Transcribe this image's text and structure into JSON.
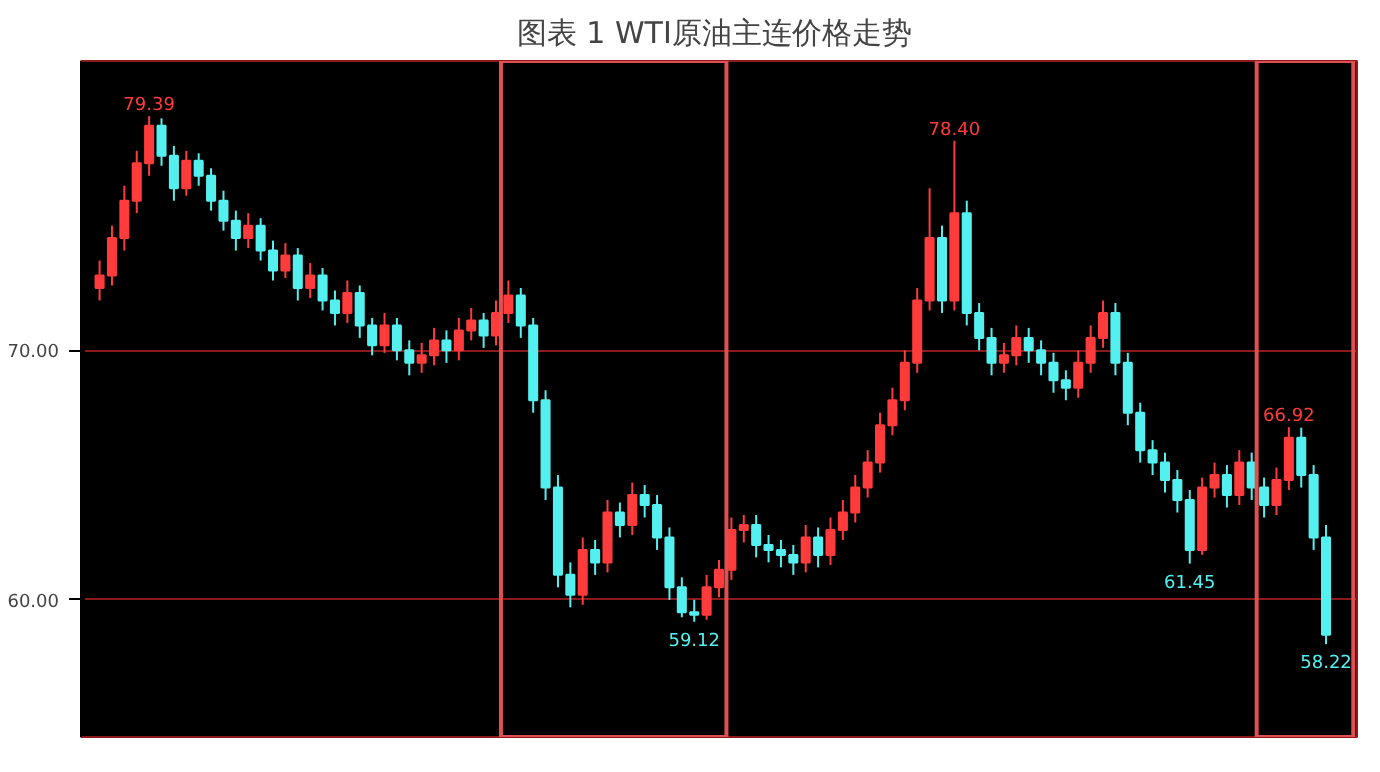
{
  "chart_data": {
    "type": "candlestick",
    "title": "图表 1  WTI原油主连价格走势",
    "categories": [
      null,
      null,
      null,
      null,
      null,
      null,
      null,
      null,
      null,
      null,
      null,
      null,
      null,
      null,
      null,
      null,
      null,
      null,
      null,
      null,
      null,
      null,
      null,
      null,
      null,
      null,
      null,
      null,
      null,
      null,
      null,
      null,
      null,
      null,
      null,
      null,
      null,
      null,
      null,
      null,
      null,
      null,
      null,
      null,
      null,
      null,
      null,
      null,
      null,
      null,
      null,
      null,
      null,
      null,
      null,
      null,
      null,
      null,
      null,
      null,
      null,
      null,
      null,
      null,
      null,
      null,
      null,
      null,
      null,
      null,
      null,
      null,
      null,
      null,
      null,
      null,
      null,
      null,
      null,
      null,
      null,
      null,
      null,
      null,
      null,
      null,
      null,
      null,
      null,
      null,
      null,
      null,
      null,
      null,
      null,
      null,
      null,
      null,
      null,
      null
    ],
    "ohlc": [
      [
        72.5,
        73.6,
        72.0,
        73.0
      ],
      [
        73.0,
        75.0,
        72.6,
        74.5
      ],
      [
        74.5,
        76.6,
        74.0,
        76.0
      ],
      [
        76.0,
        78.0,
        75.5,
        77.5
      ],
      [
        77.5,
        79.39,
        77.0,
        79.0
      ],
      [
        79.0,
        79.3,
        77.4,
        77.8
      ],
      [
        77.8,
        78.2,
        76.0,
        76.5
      ],
      [
        76.5,
        78.0,
        76.2,
        77.6
      ],
      [
        77.6,
        77.9,
        76.6,
        77.0
      ],
      [
        77.0,
        77.3,
        75.6,
        76.0
      ],
      [
        76.0,
        76.4,
        74.8,
        75.2
      ],
      [
        75.2,
        75.6,
        74.0,
        74.5
      ],
      [
        74.5,
        75.5,
        74.1,
        75.0
      ],
      [
        75.0,
        75.3,
        73.6,
        74.0
      ],
      [
        74.0,
        74.4,
        72.8,
        73.2
      ],
      [
        73.2,
        74.3,
        72.9,
        73.8
      ],
      [
        73.8,
        74.1,
        72.0,
        72.5
      ],
      [
        72.5,
        73.5,
        72.1,
        73.0
      ],
      [
        73.0,
        73.3,
        71.6,
        72.0
      ],
      [
        72.0,
        72.4,
        71.0,
        71.5
      ],
      [
        71.5,
        72.8,
        71.1,
        72.3
      ],
      [
        72.3,
        72.6,
        70.5,
        71.0
      ],
      [
        71.0,
        71.3,
        69.8,
        70.2
      ],
      [
        70.2,
        71.5,
        69.9,
        71.0
      ],
      [
        71.0,
        71.3,
        69.6,
        70.0
      ],
      [
        70.0,
        70.4,
        69.0,
        69.5
      ],
      [
        69.5,
        70.3,
        69.1,
        69.8
      ],
      [
        69.8,
        70.9,
        69.4,
        70.4
      ],
      [
        70.4,
        70.8,
        69.5,
        70.0
      ],
      [
        70.0,
        71.3,
        69.6,
        70.8
      ],
      [
        70.8,
        71.7,
        70.4,
        71.2
      ],
      [
        71.2,
        71.5,
        70.1,
        70.6
      ],
      [
        70.6,
        72.0,
        70.2,
        71.5
      ],
      [
        71.5,
        72.8,
        71.1,
        72.2
      ],
      [
        72.2,
        72.5,
        70.5,
        71.0
      ],
      [
        71.0,
        71.3,
        67.5,
        68.0
      ],
      [
        68.0,
        68.4,
        64.0,
        64.5
      ],
      [
        64.5,
        65.0,
        60.5,
        61.0
      ],
      [
        61.0,
        61.5,
        59.7,
        60.2
      ],
      [
        60.2,
        62.5,
        59.8,
        62.0
      ],
      [
        62.0,
        62.4,
        61.0,
        61.5
      ],
      [
        61.5,
        64.0,
        61.1,
        63.5
      ],
      [
        63.5,
        63.9,
        62.5,
        63.0
      ],
      [
        63.0,
        64.7,
        62.6,
        64.2
      ],
      [
        64.2,
        64.6,
        63.3,
        63.8
      ],
      [
        63.8,
        64.2,
        62.0,
        62.5
      ],
      [
        62.5,
        62.9,
        60.0,
        60.5
      ],
      [
        60.5,
        60.9,
        59.3,
        59.5
      ],
      [
        59.5,
        60.0,
        59.12,
        59.4
      ],
      [
        59.4,
        61.0,
        59.2,
        60.5
      ],
      [
        60.5,
        61.6,
        60.1,
        61.2
      ],
      [
        61.2,
        63.3,
        60.8,
        62.8
      ],
      [
        62.8,
        63.4,
        62.3,
        63.0
      ],
      [
        63.0,
        63.4,
        61.7,
        62.2
      ],
      [
        62.2,
        62.6,
        61.5,
        62.0
      ],
      [
        62.0,
        62.4,
        61.3,
        61.8
      ],
      [
        61.8,
        62.2,
        61.0,
        61.5
      ],
      [
        61.5,
        63.0,
        61.1,
        62.5
      ],
      [
        62.5,
        62.9,
        61.3,
        61.8
      ],
      [
        61.8,
        63.3,
        61.4,
        62.8
      ],
      [
        62.8,
        64.0,
        62.4,
        63.5
      ],
      [
        63.5,
        65.0,
        63.1,
        64.5
      ],
      [
        64.5,
        66.0,
        64.1,
        65.5
      ],
      [
        65.5,
        67.5,
        65.1,
        67.0
      ],
      [
        67.0,
        68.5,
        66.6,
        68.0
      ],
      [
        68.0,
        70.0,
        67.6,
        69.5
      ],
      [
        69.5,
        72.5,
        69.1,
        72.0
      ],
      [
        72.0,
        76.5,
        71.6,
        74.5
      ],
      [
        74.5,
        75.0,
        71.5,
        72.0
      ],
      [
        72.0,
        78.4,
        71.6,
        75.5
      ],
      [
        75.5,
        76.0,
        71.0,
        71.5
      ],
      [
        71.5,
        71.9,
        70.0,
        70.5
      ],
      [
        70.5,
        70.9,
        69.0,
        69.5
      ],
      [
        69.5,
        70.3,
        69.1,
        69.8
      ],
      [
        69.8,
        71.0,
        69.4,
        70.5
      ],
      [
        70.5,
        70.9,
        69.5,
        70.0
      ],
      [
        70.0,
        70.4,
        69.0,
        69.5
      ],
      [
        69.5,
        69.9,
        68.3,
        68.8
      ],
      [
        68.8,
        69.2,
        68.0,
        68.5
      ],
      [
        68.5,
        70.0,
        68.1,
        69.5
      ],
      [
        69.5,
        71.0,
        69.1,
        70.5
      ],
      [
        70.5,
        72.0,
        70.1,
        71.5
      ],
      [
        71.5,
        71.9,
        69.0,
        69.5
      ],
      [
        69.5,
        69.9,
        67.0,
        67.5
      ],
      [
        67.5,
        67.9,
        65.5,
        66.0
      ],
      [
        66.0,
        66.4,
        65.0,
        65.5
      ],
      [
        65.5,
        65.9,
        64.3,
        64.8
      ],
      [
        64.8,
        65.2,
        63.5,
        64.0
      ],
      [
        64.0,
        64.4,
        61.45,
        62.0
      ],
      [
        62.0,
        64.9,
        61.8,
        64.5
      ],
      [
        64.5,
        65.5,
        64.1,
        65.0
      ],
      [
        65.0,
        65.4,
        63.7,
        64.2
      ],
      [
        64.2,
        66.0,
        63.8,
        65.5
      ],
      [
        65.5,
        65.9,
        64.0,
        64.5
      ],
      [
        64.5,
        64.9,
        63.3,
        63.8
      ],
      [
        63.8,
        65.3,
        63.4,
        64.8
      ],
      [
        64.8,
        66.92,
        64.4,
        66.5
      ],
      [
        66.5,
        66.9,
        64.5,
        65.0
      ],
      [
        65.0,
        65.4,
        62.0,
        62.5
      ],
      [
        62.5,
        63.0,
        58.22,
        58.6
      ]
    ],
    "ylim": [
      54.5,
      81.6
    ],
    "yticks": [
      {
        "value": 70,
        "label": "70.00"
      },
      {
        "value": 60,
        "label": "60.00"
      }
    ],
    "grid": "y",
    "tick_labels": "y",
    "annotations": [
      {
        "text": "79.39",
        "y": 79.39
      },
      {
        "text": "78.40",
        "y": 78.4
      },
      {
        "text": "59.12",
        "y": 59.12
      },
      {
        "text": "61.45",
        "y": 61.45
      },
      {
        "text": "66.92",
        "y": 66.92
      },
      {
        "text": "58.22",
        "y": 58.22
      }
    ]
  }
}
